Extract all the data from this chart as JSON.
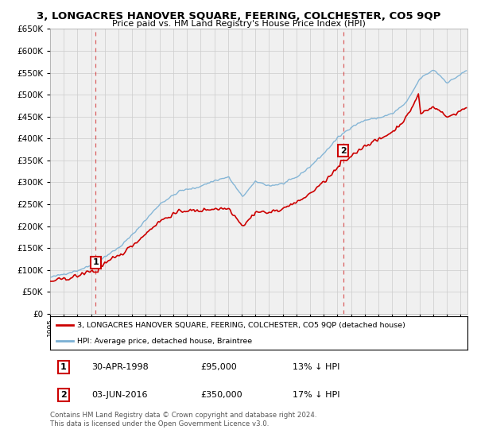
{
  "title": "3, LONGACRES HANOVER SQUARE, FEERING, COLCHESTER, CO5 9QP",
  "subtitle": "Price paid vs. HM Land Registry's House Price Index (HPI)",
  "legend_line1": "3, LONGACRES HANOVER SQUARE, FEERING, COLCHESTER, CO5 9QP (detached house)",
  "legend_line2": "HPI: Average price, detached house, Braintree",
  "transaction1_date": "30-APR-1998",
  "transaction1_price": "£95,000",
  "transaction1_hpi": "13% ↓ HPI",
  "transaction1_year": 1998.33,
  "transaction1_value": 95000,
  "transaction2_date": "03-JUN-2016",
  "transaction2_price": "£350,000",
  "transaction2_hpi": "17% ↓ HPI",
  "transaction2_year": 2016.42,
  "transaction2_value": 350000,
  "footer1": "Contains HM Land Registry data © Crown copyright and database right 2024.",
  "footer2": "This data is licensed under the Open Government Licence v3.0.",
  "red_color": "#cc0000",
  "blue_color": "#7ab0d4",
  "bg_color": "#ffffff",
  "grid_color": "#cccccc",
  "chart_bg": "#f0f0f0",
  "ylim": [
    0,
    650000
  ],
  "yticks": [
    0,
    50000,
    100000,
    150000,
    200000,
    250000,
    300000,
    350000,
    400000,
    450000,
    500000,
    550000,
    600000,
    650000
  ],
  "xmin": 1995,
  "xmax": 2025
}
